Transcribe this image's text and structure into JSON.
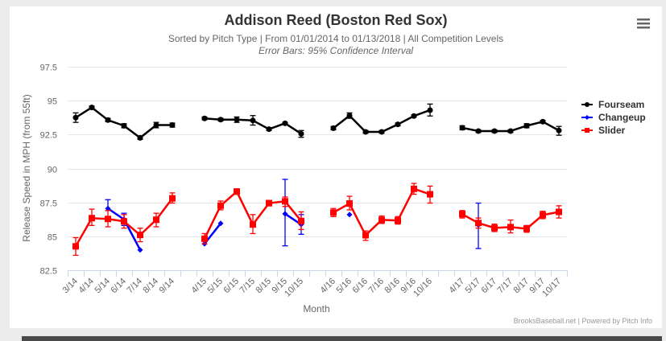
{
  "menu": {
    "icon": "hamburger-menu-icon"
  },
  "credits": "BrooksBaseball.net | Powered by Pitch Info",
  "chart_data": {
    "type": "line",
    "title": "Addison Reed (Boston Red Sox)",
    "subtitle": "Sorted by Pitch Type | From 01/01/2014 to 01/13/2018 | All Competition Levels",
    "subtitle2": "Error Bars: 95% Confidence Interval",
    "xlabel": "Month",
    "ylabel": "Release Speed in MPH (from 55ft)",
    "ylim": [
      82.5,
      97.5
    ],
    "yticks": [
      82.5,
      85,
      87.5,
      90,
      92.5,
      95,
      97.5
    ],
    "ytick_labels": [
      "82.5",
      "85",
      "87.5",
      "90",
      "92.5",
      "95",
      "97.5"
    ],
    "grid": true,
    "legend_position": "right",
    "categories": [
      "3/14",
      "4/14",
      "5/14",
      "6/14",
      "7/14",
      "8/14",
      "9/14",
      "",
      "4/15",
      "5/15",
      "6/15",
      "7/15",
      "8/15",
      "9/15",
      "10/15",
      "",
      "4/16",
      "5/16",
      "6/16",
      "7/16",
      "8/16",
      "9/16",
      "10/16",
      "",
      "4/17",
      "5/17",
      "6/17",
      "7/17",
      "8/17",
      "9/17",
      "10/17"
    ],
    "series": [
      {
        "name": "Fourseam",
        "color": "#000000",
        "marker": "circle",
        "values": [
          93.75,
          94.5,
          93.57,
          93.15,
          92.26,
          93.2,
          93.2,
          null,
          93.69,
          93.6,
          93.6,
          93.54,
          92.9,
          93.33,
          92.56,
          null,
          92.97,
          93.9,
          92.7,
          92.7,
          93.25,
          93.87,
          94.3,
          null,
          93.0,
          92.76,
          92.76,
          92.76,
          93.15,
          93.45,
          92.8
        ],
        "err_low": [
          93.4,
          94.4,
          93.45,
          93.0,
          92.15,
          93.0,
          93.05,
          null,
          93.6,
          93.5,
          93.4,
          93.2,
          92.8,
          93.25,
          92.3,
          null,
          92.85,
          93.7,
          92.6,
          92.6,
          93.15,
          93.8,
          93.87,
          null,
          92.85,
          92.65,
          92.65,
          92.65,
          93.0,
          93.35,
          92.45
        ],
        "err_high": [
          94.1,
          94.6,
          93.7,
          93.3,
          92.4,
          93.4,
          93.35,
          null,
          93.8,
          93.7,
          93.8,
          93.9,
          93.0,
          93.4,
          92.8,
          null,
          93.1,
          94.1,
          92.8,
          92.8,
          93.35,
          93.95,
          94.75,
          null,
          93.15,
          92.85,
          92.85,
          92.85,
          93.3,
          93.55,
          93.1
        ]
      },
      {
        "name": "Changeup",
        "color": "#0000ff",
        "marker": "diamond",
        "values": [
          null,
          null,
          87.05,
          86.25,
          84.0,
          null,
          null,
          null,
          84.45,
          85.95,
          null,
          null,
          null,
          86.66,
          85.87,
          null,
          null,
          86.6,
          null,
          null,
          null,
          null,
          null,
          null,
          null,
          85.83,
          null,
          null,
          null,
          null,
          null
        ],
        "err_low": [
          null,
          null,
          86.9,
          85.8,
          null,
          null,
          null,
          null,
          null,
          null,
          null,
          null,
          null,
          84.3,
          85.15,
          null,
          null,
          null,
          null,
          null,
          null,
          null,
          null,
          null,
          null,
          84.1,
          null,
          null,
          null,
          null,
          null
        ],
        "err_high": [
          null,
          null,
          87.7,
          86.7,
          null,
          null,
          null,
          null,
          null,
          null,
          null,
          null,
          null,
          89.2,
          86.6,
          null,
          null,
          null,
          null,
          null,
          null,
          null,
          null,
          null,
          null,
          87.45,
          null,
          null,
          null,
          null,
          null
        ]
      },
      {
        "name": "Slider",
        "color": "#ff0000",
        "marker": "square",
        "values": [
          84.26,
          86.34,
          86.28,
          86.1,
          85.1,
          86.22,
          87.8,
          null,
          84.82,
          87.26,
          88.3,
          85.87,
          87.44,
          87.58,
          86.13,
          null,
          86.75,
          87.42,
          85.08,
          86.21,
          86.17,
          88.5,
          88.1,
          null,
          86.63,
          85.98,
          85.62,
          85.68,
          85.56,
          86.57,
          86.8
        ],
        "err_low": [
          83.6,
          85.8,
          85.7,
          85.6,
          84.6,
          85.7,
          87.45,
          null,
          84.45,
          86.95,
          88.1,
          85.2,
          87.25,
          87.2,
          85.5,
          null,
          86.45,
          86.95,
          84.7,
          85.95,
          85.9,
          88.1,
          87.45,
          null,
          86.35,
          85.6,
          85.35,
          85.25,
          85.3,
          86.3,
          86.35
        ],
        "err_high": [
          84.9,
          87.0,
          86.9,
          86.6,
          85.6,
          86.7,
          88.2,
          null,
          85.2,
          87.6,
          88.5,
          86.6,
          87.65,
          87.9,
          86.8,
          null,
          87.05,
          87.95,
          85.4,
          86.5,
          86.45,
          88.9,
          88.7,
          null,
          86.9,
          86.35,
          85.9,
          86.2,
          85.8,
          86.85,
          87.25
        ]
      }
    ]
  }
}
